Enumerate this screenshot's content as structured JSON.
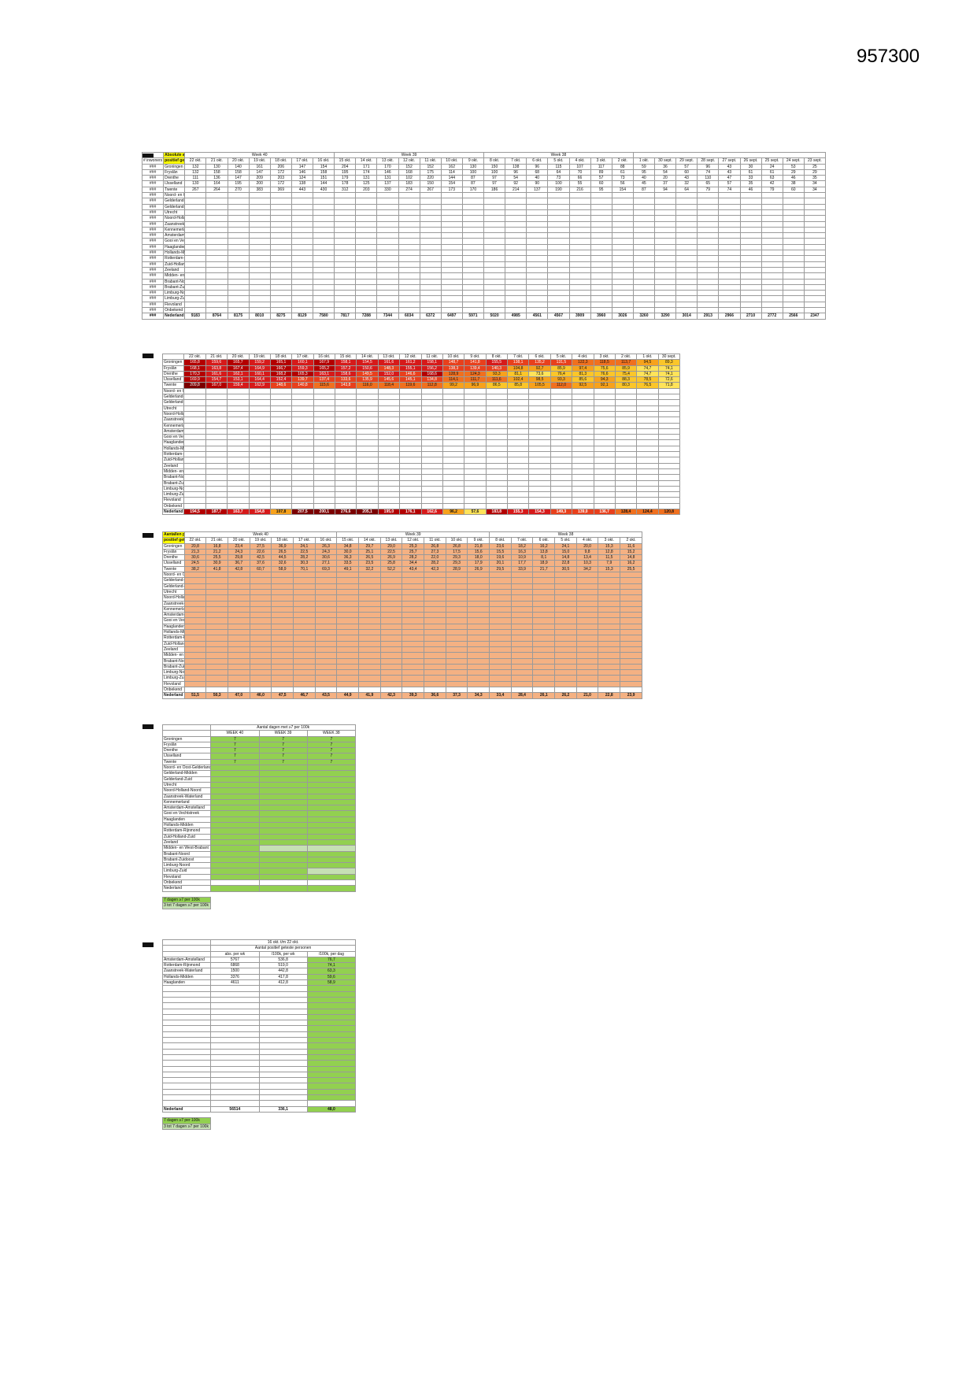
{
  "doc": {
    "id": "957300"
  },
  "regions": [
    "Groningen",
    "Fryslân",
    "Drenthe",
    "IJsselland",
    "Twente",
    "Noord- en Oost-Gelderland",
    "Gelderland-Midden",
    "Gelderland-Zuid",
    "Utrecht",
    "Noord-Holland-Noord",
    "Zaanstreek-Waterland",
    "Kennemerland",
    "Amsterdam-Amstelland",
    "Gooi en Vechtstreek",
    "Haaglanden",
    "Hollands-Midden",
    "Rotterdam-Rijnmond",
    "Zuid-Holland-Zuid",
    "Zeeland",
    "Midden- en West-Brabant",
    "Brabant-Noord",
    "Brabant-Zuidoost",
    "Limburg-Noord",
    "Limburg-Zuid",
    "Flevoland",
    "Onbekend",
    "Nederland"
  ],
  "row_mark": "###",
  "abs": {
    "title": "Absolute aantallen",
    "col0": "# inwoners",
    "col1": "positief getesten",
    "weeks": [
      "Week 40",
      "Week 39",
      "Week 38"
    ],
    "dates": [
      "22 okt.",
      "21 okt.",
      "20 okt.",
      "19 okt.",
      "18 okt.",
      "17 okt.",
      "16 okt.",
      "15 okt.",
      "14 okt.",
      "13 okt.",
      "12 okt.",
      "11 okt.",
      "10 okt.",
      "9 okt.",
      "8 okt.",
      "7 okt.",
      "6 okt.",
      "5 okt.",
      "4 okt.",
      "3 okt.",
      "2 okt.",
      "1 okt.",
      "30 sept.",
      "29 sept.",
      "28 sept.",
      "27 sept.",
      "26 sept.",
      "25 sept.",
      "24 sept.",
      "23 sept."
    ],
    "rows": [
      [
        "132",
        "130",
        "140",
        "161",
        "206",
        "147",
        "154",
        "204",
        "171",
        "170",
        "152",
        "152",
        "162",
        "130",
        "150",
        "138",
        "96",
        "115",
        "107",
        "117",
        "88",
        "59",
        "36",
        "57",
        "96",
        "43",
        "30",
        "24",
        "53",
        "25"
      ],
      [
        "132",
        "158",
        "158",
        "147",
        "172",
        "146",
        "158",
        "195",
        "174",
        "146",
        "168",
        "175",
        "114",
        "100",
        "100",
        "96",
        "68",
        "64",
        "70",
        "89",
        "61",
        "95",
        "54",
        "60",
        "74",
        "43",
        "61",
        "61",
        "29",
        "29"
      ],
      [
        "111",
        "136",
        "147",
        "209",
        "203",
        "124",
        "151",
        "179",
        "131",
        "131",
        "102",
        "220",
        "144",
        "87",
        "97",
        "54",
        "40",
        "73",
        "66",
        "57",
        "73",
        "40",
        "20",
        "43",
        "110",
        "47",
        "33",
        "63",
        "46",
        "35"
      ],
      [
        "130",
        "164",
        "195",
        "200",
        "172",
        "138",
        "144",
        "178",
        "125",
        "137",
        "183",
        "150",
        "154",
        "87",
        "97",
        "92",
        "90",
        "100",
        "55",
        "60",
        "56",
        "45",
        "37",
        "32",
        "65",
        "57",
        "35",
        "42",
        "38",
        "34"
      ],
      [
        "267",
        "264",
        "270",
        "383",
        "369",
        "443",
        "430",
        "312",
        "203",
        "330",
        "274",
        "267",
        "173",
        "170",
        "186",
        "214",
        "137",
        "190",
        "216",
        "95",
        "154",
        "87",
        "94",
        "64",
        "79",
        "74",
        "46",
        "79",
        "60",
        "34"
      ]
    ],
    "total": [
      "9183",
      "8764",
      "8175",
      "8010",
      "8275",
      "8129",
      "7580",
      "7817",
      "7288",
      "7344",
      "6034",
      "6372",
      "6497",
      "5971",
      "5020",
      "4985",
      "4561",
      "4567",
      "3909",
      "3960",
      "3026",
      "3260",
      "3290",
      "3014",
      "2913",
      "2966",
      "2710",
      "2772",
      "2566",
      "2347"
    ]
  },
  "heat": {
    "dates": [
      "22 okt.",
      "21 okt.",
      "20 okt.",
      "19 okt.",
      "18 okt.",
      "17 okt.",
      "16 okt.",
      "15 okt.",
      "14 okt.",
      "13 okt.",
      "12 okt.",
      "11 okt.",
      "10 okt.",
      "9 okt.",
      "8 okt.",
      "7 okt.",
      "6 okt.",
      "5 okt.",
      "4 okt.",
      "3 okt.",
      "2 okt.",
      "1 okt.",
      "30 sept."
    ],
    "rows": [
      [
        "165,8",
        "159,6",
        "165,7",
        "159,2",
        "165,1",
        "160,1",
        "167,9",
        "158,1",
        "154,5",
        "161,6",
        "161,2",
        "158,1",
        "148,7",
        "141,8",
        "155,5",
        "138,1",
        "135,2",
        "131,5",
        "122,3",
        "118,5",
        "113,7",
        "94,5",
        "89,3"
      ],
      [
        "168,1",
        "163,8",
        "167,4",
        "164,9",
        "166,7",
        "159,3",
        "165,2",
        "157,2",
        "150,6",
        "148,3",
        "155,1",
        "156,2",
        "138,3",
        "139,4",
        "140,3",
        "104,8",
        "92,7",
        "85,9",
        "97,4",
        "75,6",
        "85,9",
        "74,7",
        "74,1"
      ],
      [
        "170,3",
        "161,6",
        "162,1",
        "160,1",
        "168,2",
        "165,3",
        "163,1",
        "158,6",
        "149,5",
        "152,0",
        "146,6",
        "168,6",
        "128,9",
        "124,3",
        "93,3",
        "81,1",
        "73,6",
        "76,4",
        "81,3",
        "76,6",
        "75,4",
        "74,7",
        "74,1"
      ],
      [
        "169,9",
        "154,7",
        "153,1",
        "164,4",
        "152,4",
        "139,7",
        "137,4",
        "133,6",
        "135,9",
        "145,6",
        "145,1",
        "134,8",
        "114,1",
        "111,7",
        "111,6",
        "102,4",
        "98,5",
        "93,3",
        "85,6",
        "94,3",
        "88,3",
        "78,5",
        "72,6"
      ],
      [
        "209,8",
        "167,0",
        "159,4",
        "162,9",
        "148,6",
        "140,8",
        "115,6",
        "143,8",
        "116,0",
        "118,4",
        "119,6",
        "112,8",
        "99,2",
        "96,9",
        "86,5",
        "85,8",
        "105,5",
        "112,0",
        "92,5",
        "92,1",
        "80,3",
        "76,5",
        "71,8"
      ]
    ],
    "total": [
      "194,5",
      "187,7",
      "163,7",
      "154,8",
      "107,8",
      "207,5",
      "200,1",
      "276,6",
      "205,1",
      "195,0",
      "176,1",
      "162,6",
      "96,2",
      "57,6",
      "183,8",
      "155,3",
      "154,3",
      "149,3",
      "139,0",
      "136,7",
      "128,4",
      "124,4",
      "120,8"
    ]
  },
  "per100k": {
    "title": "Aantallen per 100k inw.",
    "subtitle": "positief getesten",
    "weeks": [
      "Week 40",
      "Week 39",
      "Week 38"
    ],
    "dates": [
      "22 okt.",
      "21 okt.",
      "20 okt.",
      "19 okt.",
      "18 okt.",
      "17 okt.",
      "16 okt.",
      "15 okt.",
      "14 okt.",
      "13 okt.",
      "12 okt.",
      "11 okt.",
      "10 okt.",
      "9 okt.",
      "8 okt.",
      "7 okt.",
      "6 okt.",
      "5 okt.",
      "4 okt.",
      "3 okt.",
      "2 okt."
    ],
    "rows": [
      [
        "20,8",
        "16,8",
        "23,4",
        "27,5",
        "36,9",
        "24,1",
        "26,3",
        "34,8",
        "29,7",
        "29,0",
        "25,3",
        "26,8",
        "26,8",
        "21,8",
        "23,6",
        "18,2",
        "16,2",
        "24,1",
        "20,0",
        "15,3",
        "11,6"
      ],
      [
        "21,3",
        "21,2",
        "24,3",
        "22,6",
        "26,5",
        "22,5",
        "24,3",
        "30,0",
        "25,1",
        "22,5",
        "25,7",
        "27,3",
        "17,5",
        "15,6",
        "15,5",
        "16,3",
        "13,8",
        "15,0",
        "9,8",
        "12,8",
        "15,2"
      ],
      [
        "30,6",
        "25,5",
        "29,8",
        "42,5",
        "44,5",
        "28,2",
        "30,6",
        "36,3",
        "26,5",
        "26,9",
        "28,2",
        "22,0",
        "29,3",
        "18,0",
        "19,6",
        "10,9",
        "8,1",
        "14,8",
        "13,4",
        "11,5",
        "14,8"
      ],
      [
        "24,5",
        "30,9",
        "36,7",
        "37,6",
        "32,6",
        "30,3",
        "27,1",
        "33,5",
        "23,5",
        "25,8",
        "34,4",
        "28,2",
        "29,3",
        "17,9",
        "20,1",
        "17,7",
        "18,9",
        "22,8",
        "10,3",
        "7,9",
        "16,2"
      ],
      [
        "38,2",
        "41,8",
        "42,8",
        "60,7",
        "58,9",
        "70,1",
        "69,3",
        "49,1",
        "32,2",
        "52,2",
        "43,4",
        "42,3",
        "28,9",
        "26,9",
        "29,5",
        "33,9",
        "21,7",
        "30,5",
        "34,2",
        "15,3",
        "25,5"
      ]
    ],
    "total": [
      "51,5",
      "50,3",
      "47,0",
      "46,0",
      "47,5",
      "46,7",
      "43,5",
      "44,9",
      "41,9",
      "42,3",
      "39,3",
      "36,6",
      "37,3",
      "34,3",
      "33,4",
      "28,4",
      "26,1",
      "26,2",
      "21,0",
      "22,8",
      "23,9"
    ]
  },
  "days": {
    "caption": "Aantal dagen met ≥7 per 100k",
    "cols": [
      "WEEK 40",
      "WEEK 39",
      "WEEK 38"
    ],
    "rows": [
      [
        "7",
        "7",
        "7"
      ],
      [
        "7",
        "7",
        "7"
      ],
      [
        "7",
        "7",
        "7"
      ],
      [
        "7",
        "7",
        "7"
      ],
      [
        "7",
        "7",
        "7"
      ]
    ],
    "legend": [
      "7 dagen ≥7 per 100k",
      "3 tot 7 dagen ≥7 per 100k"
    ]
  },
  "totals": {
    "caption1": "16 okt. t/m 22 okt.",
    "caption2": "Aantal positief geteste personen",
    "cols": [
      "abs. per wk",
      "/100k, per wk",
      "/100k, per dag"
    ],
    "rows": [
      [
        "Amsterdam-Amstelland",
        "5767",
        "536,8",
        "76,7"
      ],
      [
        "Rotterdam-Rijnmond",
        "6868",
        "519,0",
        "74,1"
      ],
      [
        "Zaanstreek-Waterland",
        "1500",
        "442,8",
        "63,3"
      ],
      [
        "Hollands-Midden",
        "3376",
        "417,8",
        "59,6"
      ],
      [
        "Haaglanden",
        "4611",
        "412,8",
        "58,9"
      ]
    ],
    "total": [
      "Nederland",
      "56514",
      "336,1",
      "48,0"
    ],
    "legend": [
      "7 dagen ≥7 per 100k",
      "3 tot 7 dagen ≥7 per 100k"
    ]
  }
}
